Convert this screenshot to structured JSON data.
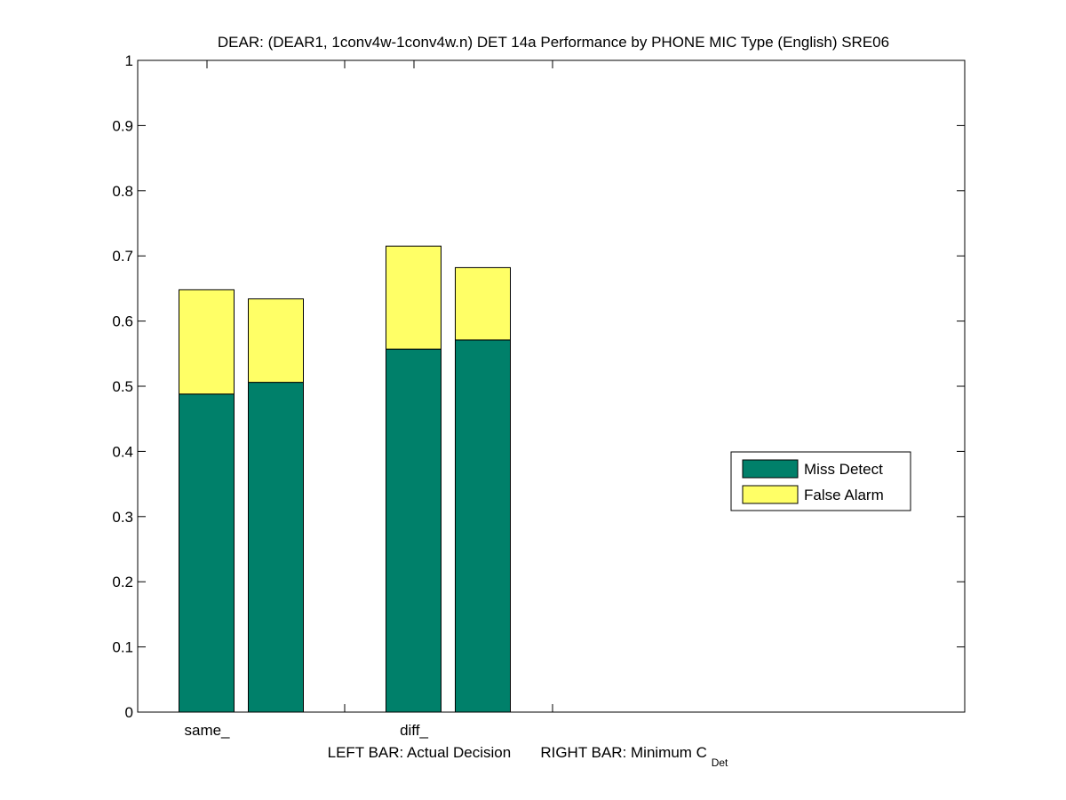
{
  "chart_data": {
    "type": "bar",
    "stacked": true,
    "title": "DEAR: (DEAR1, 1conv4w-1conv4w.n) DET 14a Performance by PHONE MIC Type (English) SRE06",
    "xlabel_left": "LEFT BAR: Actual Decision",
    "xlabel_right_main": "RIGHT BAR: Minimum C",
    "xlabel_right_sub": "Det",
    "ylim": [
      0,
      1
    ],
    "yticks": [
      "0",
      "0.1",
      "0.2",
      "0.3",
      "0.4",
      "0.5",
      "0.6",
      "0.7",
      "0.8",
      "0.9",
      "1"
    ],
    "categories": [
      "same_",
      "diff_"
    ],
    "bars_per_category": [
      "Actual Decision",
      "Minimum C_Det"
    ],
    "series": [
      {
        "name": "Miss Detect",
        "color": "#00806a",
        "values": [
          [
            0.488,
            0.506
          ],
          [
            0.557,
            0.571
          ]
        ]
      },
      {
        "name": "False Alarm",
        "color": "#ffff66",
        "values": [
          [
            0.16,
            0.128
          ],
          [
            0.158,
            0.111
          ]
        ]
      }
    ],
    "legend_position": "right",
    "grid": false
  }
}
